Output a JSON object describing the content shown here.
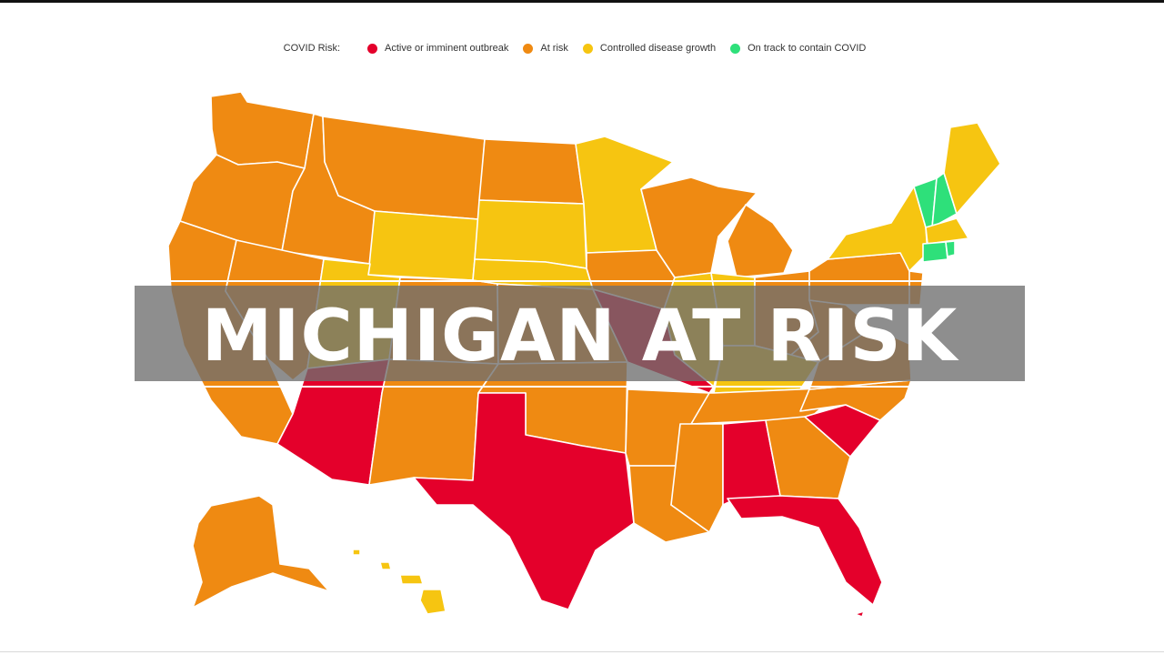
{
  "legend": {
    "title": "COVID Risk:",
    "items": [
      {
        "label": "Active or imminent outbreak",
        "color": "#e4002b"
      },
      {
        "label": "At risk",
        "color": "#ef8a12"
      },
      {
        "label": "Controlled disease growth",
        "color": "#f6c511"
      },
      {
        "label": "On track to contain COVID",
        "color": "#2ee07a"
      }
    ]
  },
  "banner": {
    "text": "MICHIGAN AT RISK"
  },
  "map": {
    "states": [
      {
        "name": "WA",
        "risk": "At risk"
      },
      {
        "name": "OR",
        "risk": "At risk"
      },
      {
        "name": "CA",
        "risk": "At risk"
      },
      {
        "name": "ID",
        "risk": "At risk"
      },
      {
        "name": "NV",
        "risk": "At risk"
      },
      {
        "name": "MT",
        "risk": "At risk"
      },
      {
        "name": "WY",
        "risk": "Controlled disease growth"
      },
      {
        "name": "UT",
        "risk": "Controlled disease growth"
      },
      {
        "name": "AZ",
        "risk": "Active or imminent outbreak"
      },
      {
        "name": "CO",
        "risk": "At risk"
      },
      {
        "name": "NM",
        "risk": "At risk"
      },
      {
        "name": "ND",
        "risk": "At risk"
      },
      {
        "name": "SD",
        "risk": "Controlled disease growth"
      },
      {
        "name": "NE",
        "risk": "Controlled disease growth"
      },
      {
        "name": "KS",
        "risk": "At risk"
      },
      {
        "name": "OK",
        "risk": "At risk"
      },
      {
        "name": "TX",
        "risk": "Active or imminent outbreak"
      },
      {
        "name": "MN",
        "risk": "Controlled disease growth"
      },
      {
        "name": "IA",
        "risk": "At risk"
      },
      {
        "name": "MO",
        "risk": "Active or imminent outbreak"
      },
      {
        "name": "AR",
        "risk": "At risk"
      },
      {
        "name": "LA",
        "risk": "At risk"
      },
      {
        "name": "WI",
        "risk": "At risk"
      },
      {
        "name": "IL",
        "risk": "Controlled disease growth"
      },
      {
        "name": "MI",
        "risk": "At risk"
      },
      {
        "name": "IN",
        "risk": "Controlled disease growth"
      },
      {
        "name": "OH",
        "risk": "At risk"
      },
      {
        "name": "KY",
        "risk": "Controlled disease growth"
      },
      {
        "name": "TN",
        "risk": "At risk"
      },
      {
        "name": "MS",
        "risk": "At risk"
      },
      {
        "name": "AL",
        "risk": "Active or imminent outbreak"
      },
      {
        "name": "GA",
        "risk": "At risk"
      },
      {
        "name": "FL",
        "risk": "Active or imminent outbreak"
      },
      {
        "name": "SC",
        "risk": "Active or imminent outbreak"
      },
      {
        "name": "NC",
        "risk": "At risk"
      },
      {
        "name": "VA",
        "risk": "At risk"
      },
      {
        "name": "WV",
        "risk": "At risk"
      },
      {
        "name": "PA",
        "risk": "At risk"
      },
      {
        "name": "NY",
        "risk": "Controlled disease growth"
      },
      {
        "name": "NJ",
        "risk": "At risk"
      },
      {
        "name": "VT",
        "risk": "On track to contain COVID"
      },
      {
        "name": "NH",
        "risk": "On track to contain COVID"
      },
      {
        "name": "ME",
        "risk": "Controlled disease growth"
      },
      {
        "name": "MA",
        "risk": "Controlled disease growth"
      },
      {
        "name": "CT",
        "risk": "On track to contain COVID"
      },
      {
        "name": "RI",
        "risk": "On track to contain COVID"
      },
      {
        "name": "AK",
        "risk": "At risk"
      },
      {
        "name": "HI",
        "risk": "Controlled disease growth"
      }
    ]
  }
}
